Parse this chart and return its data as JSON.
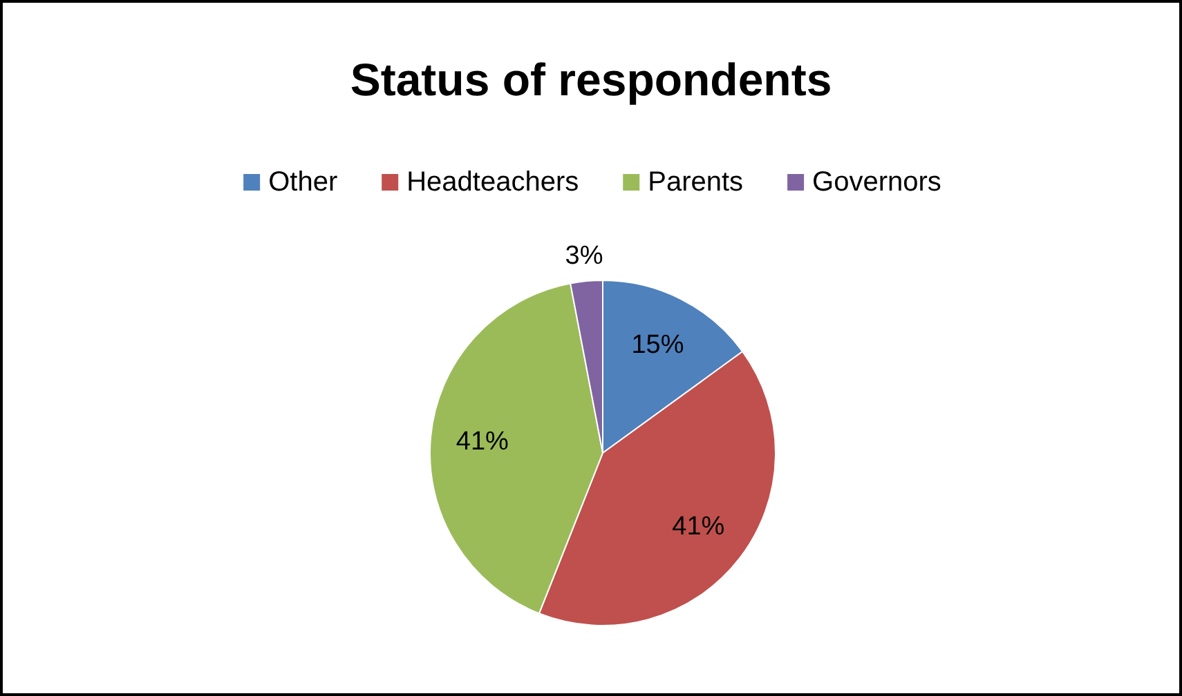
{
  "chart_data": {
    "type": "pie",
    "title": "Status of respondents",
    "categories": [
      "Other",
      "Headteachers",
      "Parents",
      "Governors"
    ],
    "values": [
      15,
      41,
      41,
      3
    ],
    "colors": [
      "#4f81bd",
      "#c0504d",
      "#9bbb59",
      "#8064a2"
    ],
    "value_labels": [
      "15%",
      "41%",
      "41%",
      "3%"
    ],
    "legend": "top"
  }
}
